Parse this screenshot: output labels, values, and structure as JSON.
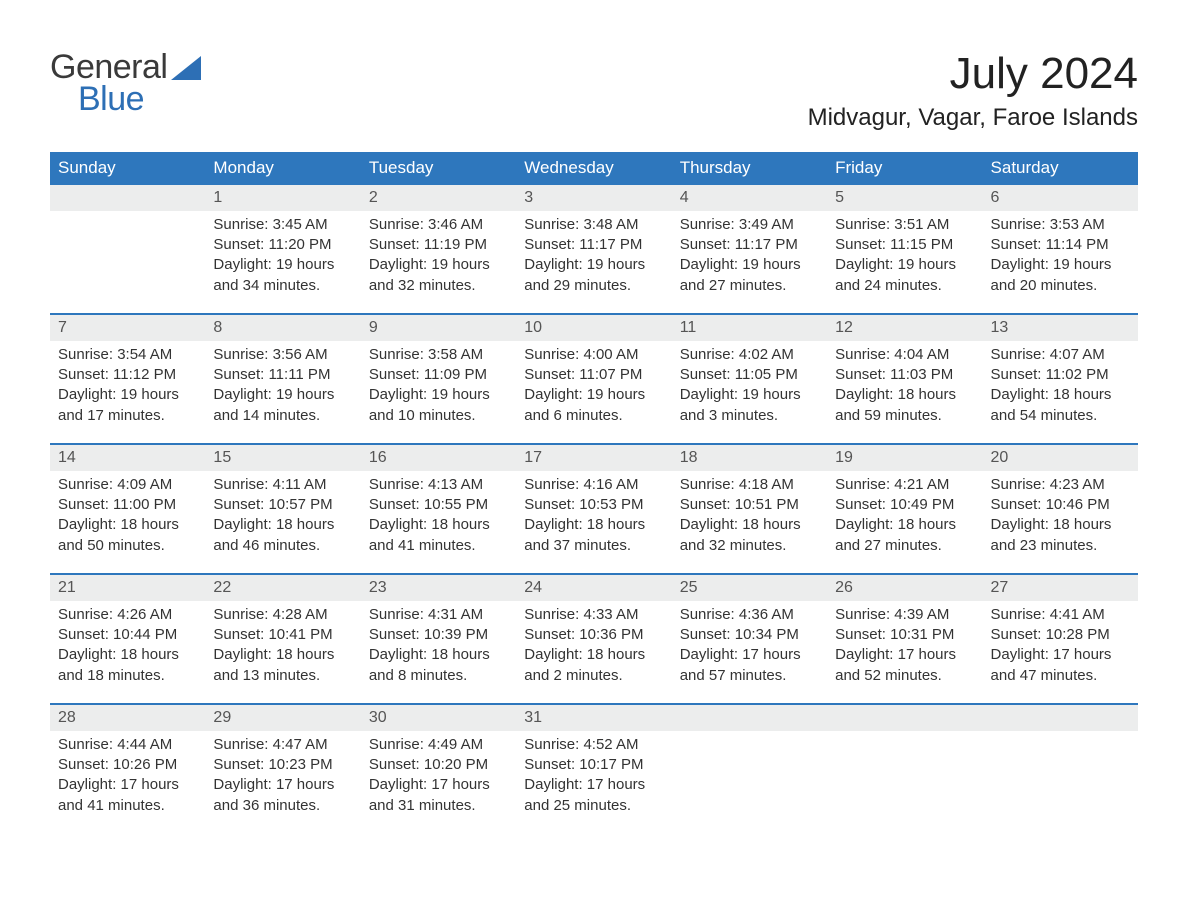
{
  "brand": {
    "word1": "General",
    "word2": "Blue",
    "accent_color": "#2d6fb5",
    "triangle_color": "#2d6fb5"
  },
  "title": "July 2024",
  "location": "Midvagur, Vagar, Faroe Islands",
  "header_bg": "#2e77bd",
  "header_fg": "#ffffff",
  "row_separator_color": "#2e77bd",
  "daynum_bg": "#eceded",
  "days_of_week": [
    "Sunday",
    "Monday",
    "Tuesday",
    "Wednesday",
    "Thursday",
    "Friday",
    "Saturday"
  ],
  "weeks": [
    [
      {
        "n": "",
        "sunrise": "",
        "sunset": "",
        "daylight1": "",
        "daylight2": ""
      },
      {
        "n": "1",
        "sunrise": "Sunrise: 3:45 AM",
        "sunset": "Sunset: 11:20 PM",
        "daylight1": "Daylight: 19 hours",
        "daylight2": "and 34 minutes."
      },
      {
        "n": "2",
        "sunrise": "Sunrise: 3:46 AM",
        "sunset": "Sunset: 11:19 PM",
        "daylight1": "Daylight: 19 hours",
        "daylight2": "and 32 minutes."
      },
      {
        "n": "3",
        "sunrise": "Sunrise: 3:48 AM",
        "sunset": "Sunset: 11:17 PM",
        "daylight1": "Daylight: 19 hours",
        "daylight2": "and 29 minutes."
      },
      {
        "n": "4",
        "sunrise": "Sunrise: 3:49 AM",
        "sunset": "Sunset: 11:17 PM",
        "daylight1": "Daylight: 19 hours",
        "daylight2": "and 27 minutes."
      },
      {
        "n": "5",
        "sunrise": "Sunrise: 3:51 AM",
        "sunset": "Sunset: 11:15 PM",
        "daylight1": "Daylight: 19 hours",
        "daylight2": "and 24 minutes."
      },
      {
        "n": "6",
        "sunrise": "Sunrise: 3:53 AM",
        "sunset": "Sunset: 11:14 PM",
        "daylight1": "Daylight: 19 hours",
        "daylight2": "and 20 minutes."
      }
    ],
    [
      {
        "n": "7",
        "sunrise": "Sunrise: 3:54 AM",
        "sunset": "Sunset: 11:12 PM",
        "daylight1": "Daylight: 19 hours",
        "daylight2": "and 17 minutes."
      },
      {
        "n": "8",
        "sunrise": "Sunrise: 3:56 AM",
        "sunset": "Sunset: 11:11 PM",
        "daylight1": "Daylight: 19 hours",
        "daylight2": "and 14 minutes."
      },
      {
        "n": "9",
        "sunrise": "Sunrise: 3:58 AM",
        "sunset": "Sunset: 11:09 PM",
        "daylight1": "Daylight: 19 hours",
        "daylight2": "and 10 minutes."
      },
      {
        "n": "10",
        "sunrise": "Sunrise: 4:00 AM",
        "sunset": "Sunset: 11:07 PM",
        "daylight1": "Daylight: 19 hours",
        "daylight2": "and 6 minutes."
      },
      {
        "n": "11",
        "sunrise": "Sunrise: 4:02 AM",
        "sunset": "Sunset: 11:05 PM",
        "daylight1": "Daylight: 19 hours",
        "daylight2": "and 3 minutes."
      },
      {
        "n": "12",
        "sunrise": "Sunrise: 4:04 AM",
        "sunset": "Sunset: 11:03 PM",
        "daylight1": "Daylight: 18 hours",
        "daylight2": "and 59 minutes."
      },
      {
        "n": "13",
        "sunrise": "Sunrise: 4:07 AM",
        "sunset": "Sunset: 11:02 PM",
        "daylight1": "Daylight: 18 hours",
        "daylight2": "and 54 minutes."
      }
    ],
    [
      {
        "n": "14",
        "sunrise": "Sunrise: 4:09 AM",
        "sunset": "Sunset: 11:00 PM",
        "daylight1": "Daylight: 18 hours",
        "daylight2": "and 50 minutes."
      },
      {
        "n": "15",
        "sunrise": "Sunrise: 4:11 AM",
        "sunset": "Sunset: 10:57 PM",
        "daylight1": "Daylight: 18 hours",
        "daylight2": "and 46 minutes."
      },
      {
        "n": "16",
        "sunrise": "Sunrise: 4:13 AM",
        "sunset": "Sunset: 10:55 PM",
        "daylight1": "Daylight: 18 hours",
        "daylight2": "and 41 minutes."
      },
      {
        "n": "17",
        "sunrise": "Sunrise: 4:16 AM",
        "sunset": "Sunset: 10:53 PM",
        "daylight1": "Daylight: 18 hours",
        "daylight2": "and 37 minutes."
      },
      {
        "n": "18",
        "sunrise": "Sunrise: 4:18 AM",
        "sunset": "Sunset: 10:51 PM",
        "daylight1": "Daylight: 18 hours",
        "daylight2": "and 32 minutes."
      },
      {
        "n": "19",
        "sunrise": "Sunrise: 4:21 AM",
        "sunset": "Sunset: 10:49 PM",
        "daylight1": "Daylight: 18 hours",
        "daylight2": "and 27 minutes."
      },
      {
        "n": "20",
        "sunrise": "Sunrise: 4:23 AM",
        "sunset": "Sunset: 10:46 PM",
        "daylight1": "Daylight: 18 hours",
        "daylight2": "and 23 minutes."
      }
    ],
    [
      {
        "n": "21",
        "sunrise": "Sunrise: 4:26 AM",
        "sunset": "Sunset: 10:44 PM",
        "daylight1": "Daylight: 18 hours",
        "daylight2": "and 18 minutes."
      },
      {
        "n": "22",
        "sunrise": "Sunrise: 4:28 AM",
        "sunset": "Sunset: 10:41 PM",
        "daylight1": "Daylight: 18 hours",
        "daylight2": "and 13 minutes."
      },
      {
        "n": "23",
        "sunrise": "Sunrise: 4:31 AM",
        "sunset": "Sunset: 10:39 PM",
        "daylight1": "Daylight: 18 hours",
        "daylight2": "and 8 minutes."
      },
      {
        "n": "24",
        "sunrise": "Sunrise: 4:33 AM",
        "sunset": "Sunset: 10:36 PM",
        "daylight1": "Daylight: 18 hours",
        "daylight2": "and 2 minutes."
      },
      {
        "n": "25",
        "sunrise": "Sunrise: 4:36 AM",
        "sunset": "Sunset: 10:34 PM",
        "daylight1": "Daylight: 17 hours",
        "daylight2": "and 57 minutes."
      },
      {
        "n": "26",
        "sunrise": "Sunrise: 4:39 AM",
        "sunset": "Sunset: 10:31 PM",
        "daylight1": "Daylight: 17 hours",
        "daylight2": "and 52 minutes."
      },
      {
        "n": "27",
        "sunrise": "Sunrise: 4:41 AM",
        "sunset": "Sunset: 10:28 PM",
        "daylight1": "Daylight: 17 hours",
        "daylight2": "and 47 minutes."
      }
    ],
    [
      {
        "n": "28",
        "sunrise": "Sunrise: 4:44 AM",
        "sunset": "Sunset: 10:26 PM",
        "daylight1": "Daylight: 17 hours",
        "daylight2": "and 41 minutes."
      },
      {
        "n": "29",
        "sunrise": "Sunrise: 4:47 AM",
        "sunset": "Sunset: 10:23 PM",
        "daylight1": "Daylight: 17 hours",
        "daylight2": "and 36 minutes."
      },
      {
        "n": "30",
        "sunrise": "Sunrise: 4:49 AM",
        "sunset": "Sunset: 10:20 PM",
        "daylight1": "Daylight: 17 hours",
        "daylight2": "and 31 minutes."
      },
      {
        "n": "31",
        "sunrise": "Sunrise: 4:52 AM",
        "sunset": "Sunset: 10:17 PM",
        "daylight1": "Daylight: 17 hours",
        "daylight2": "and 25 minutes."
      },
      {
        "n": "",
        "sunrise": "",
        "sunset": "",
        "daylight1": "",
        "daylight2": ""
      },
      {
        "n": "",
        "sunrise": "",
        "sunset": "",
        "daylight1": "",
        "daylight2": ""
      },
      {
        "n": "",
        "sunrise": "",
        "sunset": "",
        "daylight1": "",
        "daylight2": ""
      }
    ]
  ]
}
